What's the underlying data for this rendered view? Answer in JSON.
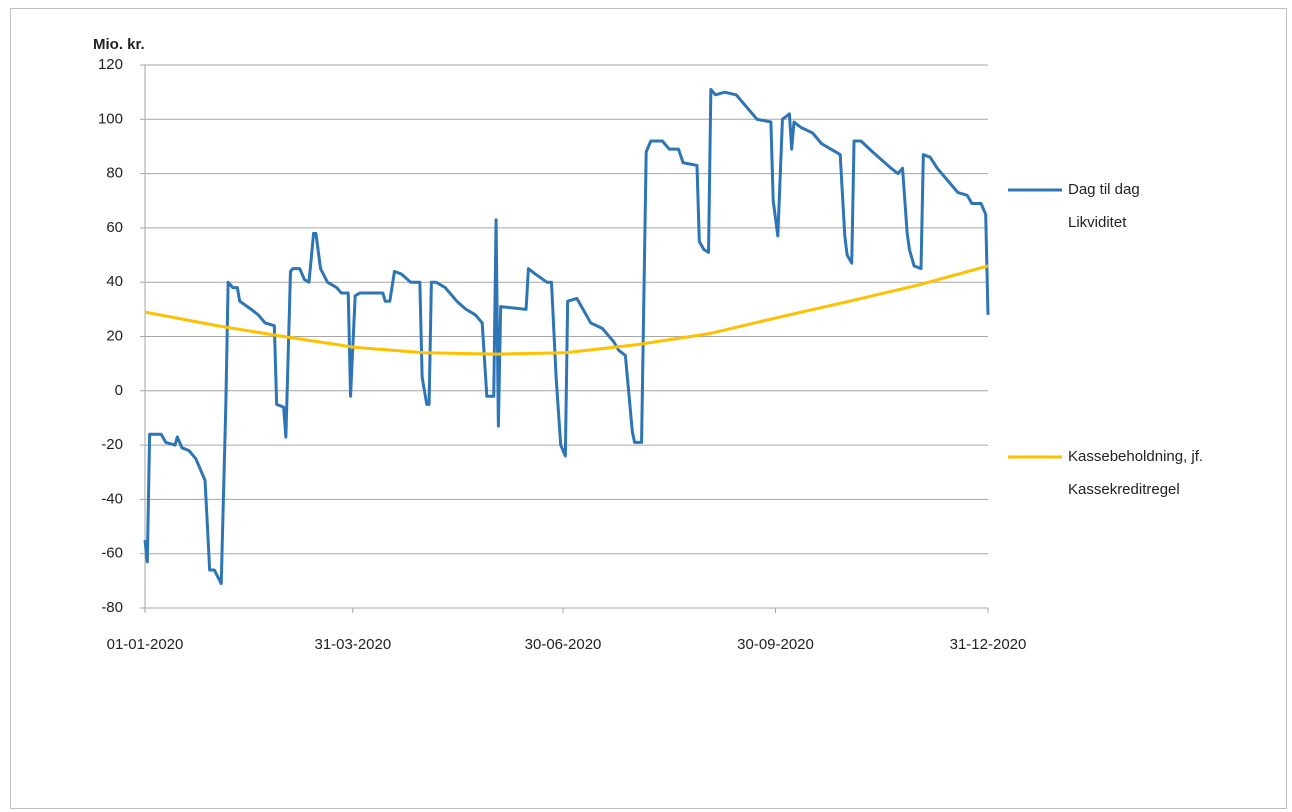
{
  "chart_data": {
    "type": "line",
    "ylabel": "Mio. kr.",
    "xlim": [
      "01-01-2020",
      "31-12-2020"
    ],
    "xticks": [
      "01-01-2020",
      "31-03-2020",
      "30-06-2020",
      "30-09-2020",
      "31-12-2020"
    ],
    "ylim": [
      -80,
      120
    ],
    "yticks": [
      -80,
      -60,
      -40,
      -20,
      0,
      20,
      40,
      60,
      80,
      100,
      120
    ],
    "grid": true,
    "legend": "right",
    "series": [
      {
        "name": "Dag til dag Likviditet",
        "color": "#2e75b6",
        "x": [
          "01-01-2020",
          "02-01-2020",
          "03-01-2020",
          "08-01-2020",
          "10-01-2020",
          "14-01-2020",
          "15-01-2020",
          "17-01-2020",
          "20-01-2020",
          "23-01-2020",
          "27-01-2020",
          "29-01-2020",
          "31-01-2020",
          "03-02-2020",
          "05-02-2020",
          "06-02-2020",
          "08-02-2020",
          "10-02-2020",
          "11-02-2020",
          "16-02-2020",
          "19-02-2020",
          "22-02-2020",
          "26-02-2020",
          "27-02-2020",
          "01-03-2020",
          "02-03-2020",
          "04-03-2020",
          "05-03-2020",
          "08-03-2020",
          "10-03-2020",
          "12-03-2020",
          "14-03-2020",
          "15-03-2020",
          "17-03-2020",
          "20-03-2020",
          "24-03-2020",
          "26-03-2020",
          "29-03-2020",
          "30-03-2020",
          "01-04-2020",
          "03-04-2020",
          "13-04-2020",
          "14-04-2020",
          "16-04-2020",
          "18-04-2020",
          "21-04-2020",
          "25-04-2020",
          "29-04-2020",
          "30-04-2020",
          "02-05-2020",
          "03-05-2020",
          "04-05-2020",
          "06-05-2020",
          "10-05-2020",
          "15-05-2020",
          "19-05-2020",
          "23-05-2020",
          "26-05-2020",
          "28-05-2020",
          "31-05-2020",
          "01-06-2020",
          "02-06-2020",
          "03-06-2020",
          "14-06-2020",
          "15-06-2020",
          "18-06-2020",
          "23-06-2020",
          "25-06-2020",
          "27-06-2020",
          "29-06-2020",
          "01-07-2020",
          "02-07-2020",
          "06-07-2020",
          "08-07-2020",
          "12-07-2020",
          "17-07-2020",
          "22-07-2020",
          "24-07-2020",
          "27-07-2020",
          "30-07-2020",
          "31-07-2020",
          "03-08-2020",
          "05-08-2020",
          "07-08-2020",
          "12-08-2020",
          "15-08-2020",
          "19-08-2020",
          "21-08-2020",
          "27-08-2020",
          "28-08-2020",
          "30-08-2020",
          "01-09-2020",
          "02-09-2020",
          "04-09-2020",
          "08-09-2020",
          "13-09-2020",
          "18-09-2020",
          "22-09-2020",
          "28-09-2020",
          "29-09-2020",
          "01-10-2020",
          "03-10-2020",
          "06-10-2020",
          "07-10-2020",
          "08-10-2020",
          "11-10-2020",
          "16-10-2020",
          "20-10-2020",
          "24-10-2020",
          "28-10-2020",
          "30-10-2020",
          "31-10-2020",
          "02-11-2020",
          "03-11-2020",
          "06-11-2020",
          "11-11-2020",
          "15-11-2020",
          "19-11-2020",
          "22-11-2020",
          "24-11-2020",
          "26-11-2020",
          "27-11-2020",
          "29-11-2020",
          "02-12-2020",
          "03-12-2020",
          "06-12-2020",
          "09-12-2020",
          "13-12-2020",
          "18-12-2020",
          "22-12-2020",
          "24-12-2020",
          "28-12-2020",
          "30-12-2020",
          "31-12-2020"
        ],
        "values": [
          -55,
          -63,
          -16,
          -16,
          -19,
          -20,
          -17,
          -21,
          -22,
          -25,
          -33,
          -66,
          -66,
          -71,
          -5,
          40,
          38,
          38,
          33,
          30,
          28,
          25,
          24,
          -5,
          -6,
          -17,
          44,
          45,
          45,
          41,
          40,
          58,
          58,
          45,
          40,
          38,
          36,
          36,
          -2,
          35,
          36,
          36,
          33,
          33,
          44,
          43,
          40,
          40,
          5,
          -5,
          -5,
          40,
          40,
          38,
          33,
          30,
          28,
          25,
          -2,
          -2,
          63,
          -13,
          31,
          30,
          45,
          43,
          40,
          40,
          5,
          -20,
          -24,
          33,
          34,
          31,
          25,
          23,
          18,
          15,
          13,
          -15,
          -19,
          -19,
          88,
          92,
          92,
          89,
          89,
          84,
          83,
          55,
          52,
          51,
          111,
          109,
          110,
          109,
          104,
          100,
          99,
          70,
          57,
          100,
          102,
          89,
          99,
          97,
          95,
          91,
          89,
          87,
          57,
          50,
          47,
          92,
          92,
          88,
          85,
          82,
          80,
          82,
          58,
          52,
          46,
          45,
          87,
          86,
          82,
          78,
          73,
          72,
          69,
          69,
          65,
          28
        ]
      },
      {
        "name": "Kassebeholdning, jf. Kassekreditregel",
        "color": "#ffc000",
        "x": [
          "01-01-2020",
          "01-02-2020",
          "01-03-2020",
          "01-04-2020",
          "01-05-2020",
          "01-06-2020",
          "01-07-2020",
          "01-08-2020",
          "01-09-2020",
          "01-10-2020",
          "01-11-2020",
          "01-12-2020",
          "31-12-2020"
        ],
        "values": [
          29,
          24,
          20,
          16,
          14,
          13.5,
          14,
          17,
          21,
          27,
          33,
          39,
          46
        ]
      }
    ]
  }
}
